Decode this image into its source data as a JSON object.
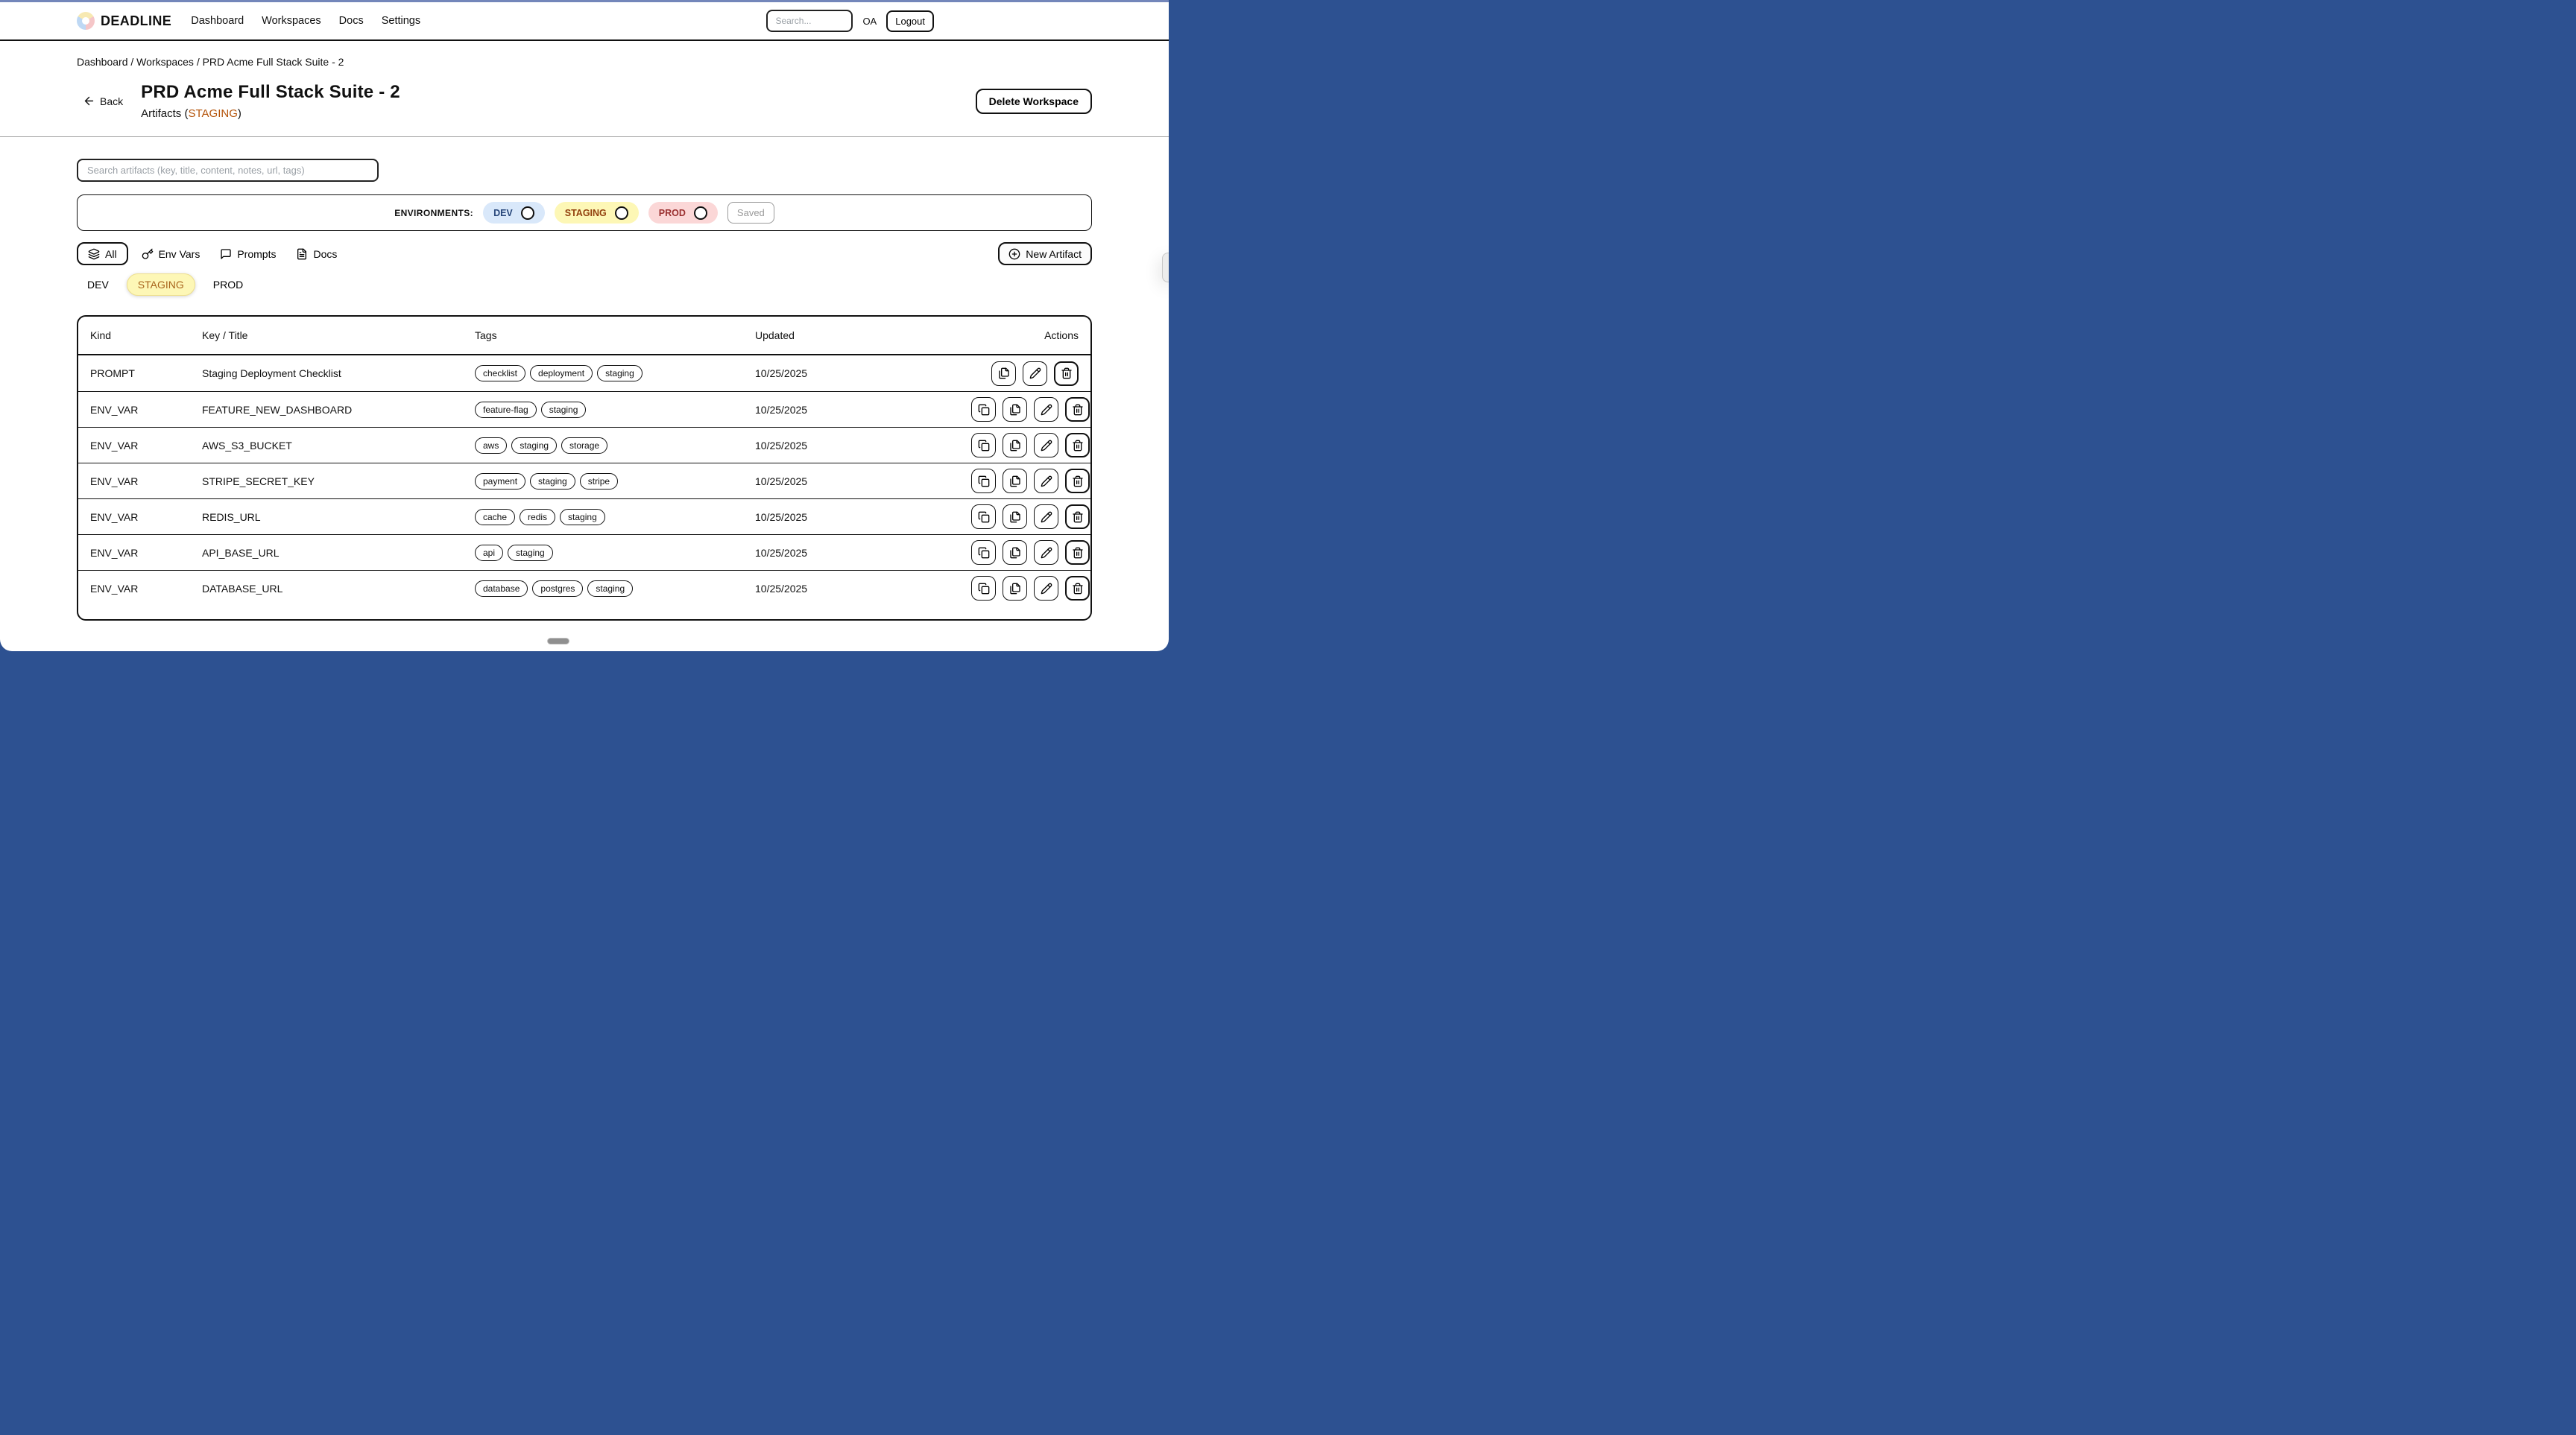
{
  "navbar": {
    "brand": "DEADLINE",
    "links": [
      "Dashboard",
      "Workspaces",
      "Docs",
      "Settings"
    ],
    "search_placeholder": "Search...",
    "user_initials": "OA",
    "logout_label": "Logout"
  },
  "breadcrumb": "Dashboard / Workspaces / PRD Acme Full Stack Suite - 2",
  "page": {
    "back_label": "Back",
    "title": "PRD Acme Full Stack Suite - 2",
    "subtitle_prefix": "Artifacts (",
    "subtitle_env": "STAGING",
    "subtitle_suffix": ")",
    "subtitle_env_color": "#b45309",
    "delete_button": "Delete Workspace"
  },
  "toolbar": {
    "search_placeholder": "Search artifacts (key, title, content, notes, url, tags)",
    "environments_label": "ENVIRONMENTS:",
    "env_toggles": [
      {
        "label": "DEV",
        "bg": "#d9e8fa",
        "color": "#27467a"
      },
      {
        "label": "STAGING",
        "bg": "#fdf7b6",
        "color": "#92400e"
      },
      {
        "label": "PROD",
        "bg": "#fbd7d7",
        "color": "#9b3030"
      }
    ],
    "saved_label": "Saved",
    "filters": [
      {
        "label": "All",
        "icon": "layers",
        "active": true
      },
      {
        "label": "Env Vars",
        "icon": "key",
        "active": false
      },
      {
        "label": "Prompts",
        "icon": "chat",
        "active": false
      },
      {
        "label": "Docs",
        "icon": "doc",
        "active": false
      }
    ],
    "new_artifact_label": "New Artifact",
    "env_tabs": [
      {
        "label": "DEV",
        "active": false
      },
      {
        "label": "STAGING",
        "active": true
      },
      {
        "label": "PROD",
        "active": false
      }
    ]
  },
  "table": {
    "columns": [
      "Kind",
      "Key / Title",
      "Tags",
      "Updated",
      "Actions"
    ],
    "rows": [
      {
        "kind": "PROMPT",
        "key": "Staging Deployment Checklist",
        "tags": [
          "checklist",
          "deployment",
          "staging"
        ],
        "updated": "10/25/2025",
        "actions": [
          "copy-artifact",
          "edit",
          "delete"
        ]
      },
      {
        "kind": "ENV_VAR",
        "key": "FEATURE_NEW_DASHBOARD",
        "tags": [
          "feature-flag",
          "staging"
        ],
        "updated": "10/25/2025",
        "actions": [
          "copy-value",
          "copy-artifact",
          "edit",
          "delete"
        ]
      },
      {
        "kind": "ENV_VAR",
        "key": "AWS_S3_BUCKET",
        "tags": [
          "aws",
          "staging",
          "storage"
        ],
        "updated": "10/25/2025",
        "actions": [
          "copy-value",
          "copy-artifact",
          "edit",
          "delete"
        ]
      },
      {
        "kind": "ENV_VAR",
        "key": "STRIPE_SECRET_KEY",
        "tags": [
          "payment",
          "staging",
          "stripe"
        ],
        "updated": "10/25/2025",
        "actions": [
          "copy-value",
          "copy-artifact",
          "edit",
          "delete"
        ]
      },
      {
        "kind": "ENV_VAR",
        "key": "REDIS_URL",
        "tags": [
          "cache",
          "redis",
          "staging"
        ],
        "updated": "10/25/2025",
        "actions": [
          "copy-value",
          "copy-artifact",
          "edit",
          "delete"
        ]
      },
      {
        "kind": "ENV_VAR",
        "key": "API_BASE_URL",
        "tags": [
          "api",
          "staging"
        ],
        "updated": "10/25/2025",
        "actions": [
          "copy-value",
          "copy-artifact",
          "edit",
          "delete"
        ]
      },
      {
        "kind": "ENV_VAR",
        "key": "DATABASE_URL",
        "tags": [
          "database",
          "postgres",
          "staging"
        ],
        "updated": "10/25/2025",
        "actions": [
          "copy-value",
          "copy-artifact",
          "edit",
          "delete"
        ]
      }
    ]
  },
  "colors": {
    "frame_bg": "#2d5191",
    "top_strip": "#7386ba",
    "staging_pill_bg": "#fdf7b6",
    "staging_pill_border": "#eedf8d",
    "staging_text": "#a8641c"
  }
}
